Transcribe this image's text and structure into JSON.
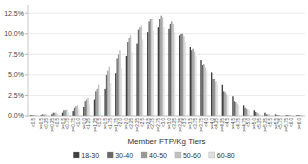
{
  "chart_data": {
    "type": "bar",
    "xlabel": "Member FTP/Kg Tiers",
    "categories": [
      "<0.5",
      ">=0.5\n<0.25",
      ">=0.25\n<0.5",
      ">=0.5\n<0.75",
      ">=0.75\n<1.0",
      ">=1.0\n<1.25",
      ">=1.25\n<1.5",
      ">=1.5\n<1.75",
      ">=1.75\n<2.0",
      ">=2.0\n<2.25",
      ">=2.25\n<2.5",
      ">=2.5\n<2.75",
      ">=2.75\n<3.0",
      ">=3.0\n<3.25",
      ">=3.25\n<3.5",
      ">=3.5\n<3.75",
      ">=3.75\n<4.0",
      ">=4.0\n<4.25",
      ">=4.25\n<4.5",
      ">=4.5\n<4.75",
      ">=4.75\n<5.0",
      ">=5.0\n<5.25",
      ">=5.25\n<5.5",
      ">=5.5\n<5.75",
      ">=5.75\n<6.0",
      ">=6.0"
    ],
    "series": [
      {
        "name": "18-30",
        "color": "#404040",
        "values": [
          0.001,
          0.001,
          0.002,
          0.004,
          0.006,
          0.011,
          0.02,
          0.033,
          0.052,
          0.073,
          0.088,
          0.102,
          0.108,
          0.106,
          0.098,
          0.084,
          0.068,
          0.053,
          0.038,
          0.024,
          0.013,
          0.007,
          0.004,
          0.002,
          0.001,
          0.001
        ]
      },
      {
        "name": "30-40",
        "color": "#686868",
        "values": [
          0.001,
          0.002,
          0.004,
          0.007,
          0.01,
          0.018,
          0.03,
          0.05,
          0.07,
          0.09,
          0.105,
          0.115,
          0.118,
          0.112,
          0.1,
          0.08,
          0.062,
          0.045,
          0.03,
          0.018,
          0.01,
          0.005,
          0.002,
          0.001,
          0.001,
          0.001
        ]
      },
      {
        "name": "40-50",
        "color": "#989898",
        "values": [
          0.001,
          0.002,
          0.004,
          0.007,
          0.012,
          0.02,
          0.033,
          0.055,
          0.075,
          0.095,
          0.108,
          0.118,
          0.122,
          0.115,
          0.1,
          0.082,
          0.063,
          0.045,
          0.029,
          0.017,
          0.009,
          0.004,
          0.002,
          0.001,
          0.001,
          0.001
        ]
      },
      {
        "name": "50-60",
        "color": "#c0c0c0",
        "values": [
          0.001,
          0.002,
          0.004,
          0.008,
          0.013,
          0.022,
          0.038,
          0.06,
          0.08,
          0.098,
          0.11,
          0.118,
          0.12,
          0.112,
          0.097,
          0.078,
          0.059,
          0.042,
          0.027,
          0.015,
          0.008,
          0.003,
          0.002,
          0.001,
          0.001,
          0.001
        ]
      },
      {
        "name": "60-80",
        "color": "#e0e0e0",
        "values": [
          0.001,
          0.002,
          0.003,
          0.005,
          0.008,
          0.014,
          0.024,
          0.04,
          0.058,
          0.078,
          0.093,
          0.104,
          0.108,
          0.102,
          0.09,
          0.073,
          0.055,
          0.038,
          0.024,
          0.013,
          0.007,
          0.003,
          0.001,
          0.001,
          0.001,
          0.001
        ]
      }
    ],
    "ylim": [
      0,
      0.135
    ],
    "yticks": [
      {
        "value": 0.0,
        "label": "0.0%"
      },
      {
        "value": 0.025,
        "label": "2.5%"
      },
      {
        "value": 0.05,
        "label": "5.0%"
      },
      {
        "value": 0.075,
        "label": "7.5%"
      },
      {
        "value": 0.1,
        "label": "10.0%"
      },
      {
        "value": 0.125,
        "label": "12.5%"
      }
    ],
    "grid": true,
    "legend": "bottom"
  }
}
